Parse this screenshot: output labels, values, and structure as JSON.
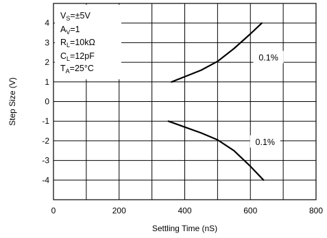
{
  "chart_data": {
    "type": "line",
    "xlabel": "Settling Time (nS)",
    "ylabel": "Step Size (V)",
    "xlim": [
      0,
      800
    ],
    "ylim": [
      -5,
      5
    ],
    "x_ticks": [
      "0",
      "200",
      "400",
      "600",
      "800"
    ],
    "y_ticks": [
      "4",
      "3",
      "2",
      "1",
      "0",
      "-1",
      "-2",
      "-3",
      "-4"
    ],
    "grid": true,
    "conditions": {
      "vs": {
        "main": "V",
        "sub": "S",
        "rest": "=±5V"
      },
      "av": {
        "main": "A",
        "sub": "V",
        "rest": "=1"
      },
      "rl": {
        "main": "R",
        "sub": "L",
        "rest": "=10kΩ"
      },
      "cl": {
        "main": "C",
        "sub": "L",
        "rest": "=12pF"
      },
      "ta": {
        "main": "T",
        "sub": "A",
        "rest": "=25°C"
      }
    },
    "series": [
      {
        "values": [
          {
            "x": 360,
            "y": 1.0
          },
          {
            "x": 400,
            "y": 1.27
          },
          {
            "x": 450,
            "y": 1.6
          },
          {
            "x": 500,
            "y": 2.05
          },
          {
            "x": 550,
            "y": 2.7
          },
          {
            "x": 600,
            "y": 3.45
          },
          {
            "x": 635,
            "y": 4.0
          }
        ]
      },
      {
        "values": [
          {
            "x": 350,
            "y": -1.0
          },
          {
            "x": 400,
            "y": -1.3
          },
          {
            "x": 450,
            "y": -1.6
          },
          {
            "x": 500,
            "y": -1.95
          },
          {
            "x": 550,
            "y": -2.5
          },
          {
            "x": 600,
            "y": -3.3
          },
          {
            "x": 640,
            "y": -4.0
          }
        ]
      }
    ],
    "annotations": [
      {
        "text": "0.1%",
        "x": 655,
        "y": 2.2
      },
      {
        "text": "0.1%",
        "x": 645,
        "y": -2.1
      }
    ]
  }
}
